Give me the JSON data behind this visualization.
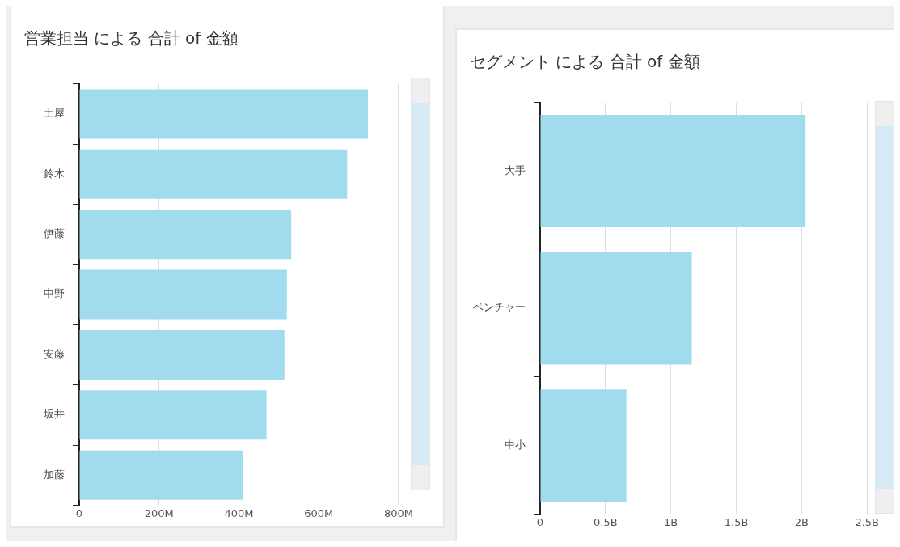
{
  "chart_data": [
    {
      "type": "bar",
      "orientation": "horizontal",
      "title": "営業担当 による 合計 of 金額",
      "categories": [
        "土屋",
        "鈴木",
        "伊藤",
        "中野",
        "安藤",
        "坂井",
        "加藤"
      ],
      "values": [
        723000000,
        671000000,
        531000000,
        520000000,
        514000000,
        469000000,
        410000000
      ],
      "color": "#a0dcee",
      "xlim": [
        0,
        800000000
      ],
      "xticks": [
        0,
        {
          "value": 200000000,
          "label": "200M"
        },
        {
          "value": 400000000,
          "label": "400M"
        },
        {
          "value": 600000000,
          "label": "600M"
        },
        {
          "value": 800000000,
          "label": "800M"
        }
      ],
      "grid": "x",
      "legend": false
    },
    {
      "type": "bar",
      "orientation": "horizontal",
      "title": "セグメント による 合計 of 金額",
      "categories": [
        "大手",
        "ベンチャー",
        "中小"
      ],
      "values": [
        2030000000,
        1160000000,
        660000000
      ],
      "color": "#a0dcee",
      "xlim": [
        0,
        2500000000
      ],
      "xticks": [
        0,
        {
          "value": 500000000,
          "label": "0.5B"
        },
        {
          "value": 1000000000,
          "label": "1B"
        },
        {
          "value": 1500000000,
          "label": "1.5B"
        },
        {
          "value": 2000000000,
          "label": "2B"
        },
        {
          "value": 2500000000,
          "label": "2.5B"
        }
      ],
      "grid": "x",
      "legend": false
    }
  ]
}
